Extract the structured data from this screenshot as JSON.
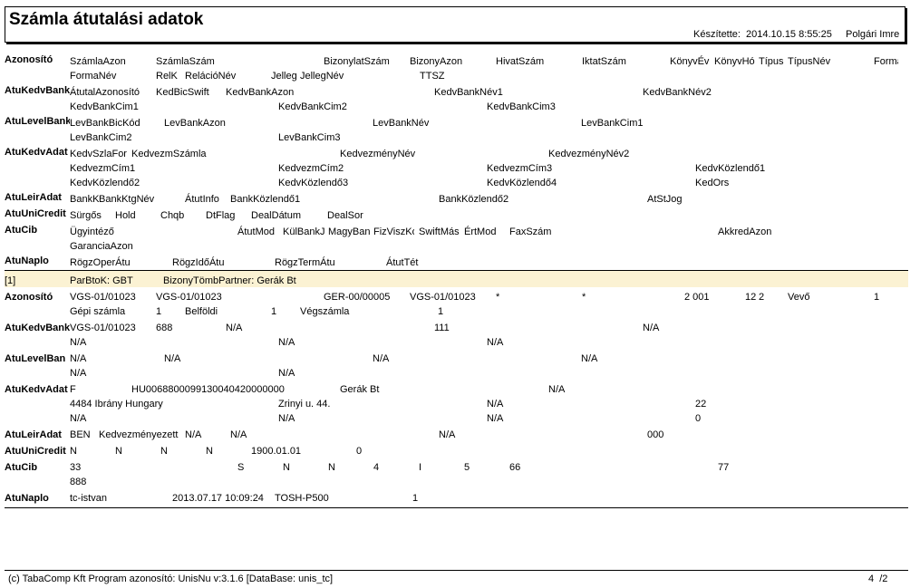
{
  "report": {
    "title": "Számla átutalási adatok",
    "created_label": "Készítette:",
    "created_at": "2014.10.15 8:55:25",
    "author": "Polgári Imre"
  },
  "header": {
    "labels": [
      "Azonosító",
      "AtuKedvBank",
      "AtuLevelBank",
      "AtuKedvAdat",
      "AtuLeirAdat",
      "AtuUniCredit",
      "AtuCib",
      "AtuNaplo"
    ],
    "f": [
      "SzámlaAzon",
      "SzámlaSzám",
      "BizonylatSzám",
      "BizonyAzon",
      "HivatSzám",
      "IktatSzám",
      "KönyvÉv",
      "KönyvHó",
      "Típus",
      "TípusNév",
      "Forma",
      "FormaNév",
      "RelK",
      "RelációNév",
      "Jelleg",
      "JellegNév",
      "TTSZ",
      "ÁtutalAzonosító",
      "KedBicSwift",
      "KedvBankAzon",
      "KedvBankNév1",
      "KedvBankNév2",
      "KedvBankCim1",
      "KedvBankCim2",
      "KedvBankCim3",
      "LevBankBicKód",
      "LevBankAzon",
      "LevBankNév",
      "LevBankCim1",
      "LevBankCim2",
      "LevBankCim3",
      "KedvSzlaFor",
      "KedvezmSzámla",
      "KedvezményNév",
      "KedvezményNév2",
      "KedvezmCím1",
      "KedvezmCím2",
      "KedvezmCím3",
      "KedvKözlendő1",
      "KedvKözlendő2",
      "KedvKözlendő3",
      "KedvKözlendő4",
      "KedOrs",
      "BankK",
      "BankKtgNév",
      "ÁtutInfo",
      "BankKözlendő1",
      "BankKözlendő2",
      "AtStJog",
      "Sürgős",
      "Hold",
      "Chqb",
      "DtFlag",
      "DealDátum",
      "DealSor",
      "Ügyintéző",
      "ÁtutMod",
      "KülBankJ",
      "MagyBan",
      "FizViszKód",
      "SwiftMás",
      "ÉrtMod",
      "FaxSzám",
      "AkkredAzon",
      "GaranciaAzon",
      "RögzOperÁtu",
      "RögzIdőÁtu",
      "RögzTermÁtu",
      "ÁtutTét"
    ]
  },
  "group": {
    "index": "[1]",
    "partner_key": "ParBtoK: GBT",
    "partner_name": "BizonyTömbPartner: Gerák Bt"
  },
  "record": {
    "labels": [
      "Azonosító",
      "AtuKedvBank",
      "AtuLevelBan",
      "AtuKedvAdat",
      "AtuLeirAdat",
      "AtuUniCredit",
      "AtuCib",
      "AtuNaplo"
    ],
    "v": [
      "VGS-01/01023",
      "VGS-01/01023",
      "GER-00/00005",
      "VGS-01/01023",
      "*",
      "*",
      "2 001",
      "12",
      "2",
      "Vevő",
      "1",
      "Gépi számla",
      "1",
      "Belföldi",
      "1",
      "Végszámla",
      "1",
      "VGS-01/01023",
      "688",
      "N/A",
      "111",
      "N/A",
      "N/A",
      "N/A",
      "N/A",
      "N/A",
      "N/A",
      "N/A",
      "N/A",
      "N/A",
      "N/A",
      "F",
      "HU0068800099130040420000000",
      "Gerák Bt",
      "N/A",
      "4484 Ibrány Hungary",
      "Zrinyi u. 44.",
      "N/A",
      "22",
      "N/A",
      "N/A",
      "N/A",
      "0",
      "BEN",
      "Kedvezményezett",
      "N/A",
      "N/A",
      "N/A",
      "000",
      "N",
      "N",
      "N",
      "N",
      "1900.01.01",
      "0",
      "33",
      "S",
      "N",
      "N",
      "4",
      "I",
      "5",
      "66",
      "77",
      "888",
      "tc-istvan",
      "2013.07.17 10:09:24",
      "TOSH-P500",
      "1"
    ]
  },
  "footer": {
    "left": "(c) TabaComp Kft Program azonosító: UnisNu v:3.1.6 [DataBase: unis_tc]",
    "page": "4  /2"
  }
}
